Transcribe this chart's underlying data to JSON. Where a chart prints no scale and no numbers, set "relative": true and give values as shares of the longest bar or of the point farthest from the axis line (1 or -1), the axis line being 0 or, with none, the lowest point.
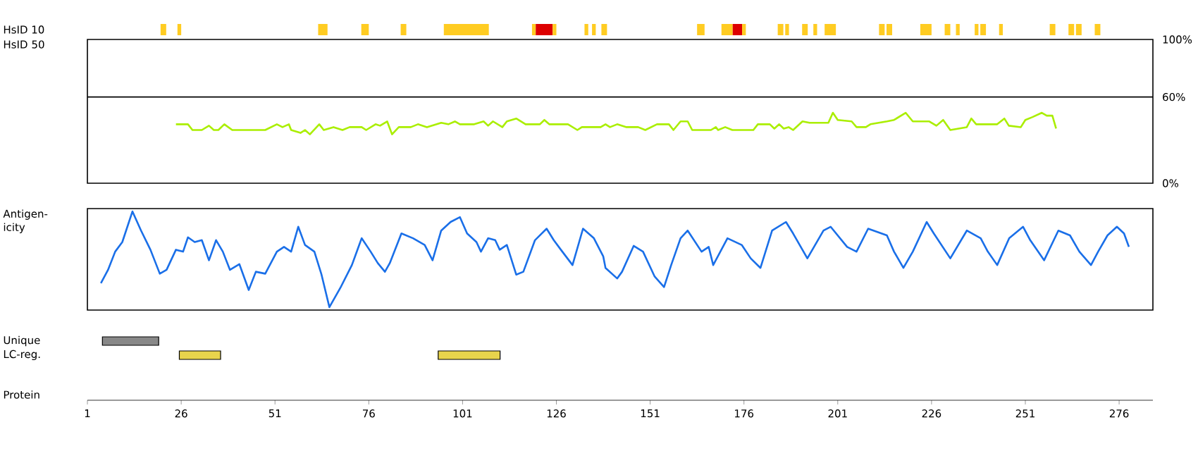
{
  "chart_data": [
    {
      "type": "bar",
      "orientation": "horizontal",
      "categories": [
        "HsID 10",
        "Unique",
        "LC-reg."
      ],
      "xlabel": "Protein",
      "xlim": [
        1,
        285
      ],
      "tick_labels": "x",
      "xticks": [
        1,
        26,
        51,
        76,
        101,
        126,
        151,
        176,
        201,
        226,
        251,
        276
      ],
      "series": [
        {
          "colors": [
            "#ffcc22",
            "#888888",
            "#e8d44c"
          ],
          "base": [
            20.5,
            5,
            25.5
          ],
          "values": [
            1.5,
            15,
            11
          ]
        },
        {
          "colors": [
            "#ffcc22",
            null,
            "#e8d44c"
          ],
          "base": [
            25,
            null,
            94.5
          ],
          "values": [
            1,
            null,
            16.5
          ]
        },
        {
          "color": "#ffcc22",
          "base": [
            62.5,
            null,
            null
          ],
          "values": [
            2.5,
            null,
            null
          ]
        },
        {
          "color": "#ffcc22",
          "base": [
            74,
            null,
            null
          ],
          "values": [
            2,
            null,
            null
          ]
        },
        {
          "color": "#ffcc22",
          "base": [
            84.5,
            null,
            null
          ],
          "values": [
            1.5,
            null,
            null
          ]
        },
        {
          "color": "#ffcc22",
          "base": [
            96,
            null,
            null
          ],
          "values": [
            12,
            null,
            null
          ]
        },
        {
          "color": "#ffcc22",
          "base": [
            119.5,
            null,
            null
          ],
          "values": [
            1,
            null,
            null
          ]
        },
        {
          "color": "#dd0000",
          "base": [
            120.5,
            null,
            null
          ],
          "values": [
            4.5,
            null,
            null
          ]
        },
        {
          "color": "#ffcc22",
          "base": [
            125,
            null,
            null
          ],
          "values": [
            1,
            null,
            null
          ]
        },
        {
          "color": "#ffcc22",
          "base": [
            133.5,
            null,
            null
          ],
          "values": [
            1,
            null,
            null
          ]
        },
        {
          "color": "#ffcc22",
          "base": [
            135.5,
            null,
            null
          ],
          "values": [
            1,
            null,
            null
          ]
        },
        {
          "color": "#ffcc22",
          "base": [
            138,
            null,
            null
          ],
          "values": [
            1.5,
            null,
            null
          ]
        },
        {
          "color": "#ffcc22",
          "base": [
            163.5,
            null,
            null
          ],
          "values": [
            2,
            null,
            null
          ]
        },
        {
          "color": "#ffcc22",
          "base": [
            170,
            null,
            null
          ],
          "values": [
            3,
            null,
            null
          ]
        },
        {
          "color": "#dd0000",
          "base": [
            173,
            null,
            null
          ],
          "values": [
            2.5,
            null,
            null
          ]
        },
        {
          "color": "#ffcc22",
          "base": [
            175.5,
            null,
            null
          ],
          "values": [
            1,
            null,
            null
          ]
        },
        {
          "color": "#ffcc22",
          "base": [
            185,
            null,
            null
          ],
          "values": [
            1.5,
            null,
            null
          ]
        },
        {
          "color": "#ffcc22",
          "base": [
            187,
            null,
            null
          ],
          "values": [
            1,
            null,
            null
          ]
        },
        {
          "color": "#ffcc22",
          "base": [
            191.5,
            null,
            null
          ],
          "values": [
            1.5,
            null,
            null
          ]
        },
        {
          "color": "#ffcc22",
          "base": [
            194.5,
            null,
            null
          ],
          "values": [
            1,
            null,
            null
          ]
        },
        {
          "color": "#ffcc22",
          "base": [
            197.5,
            null,
            null
          ],
          "values": [
            3,
            null,
            null
          ]
        },
        {
          "color": "#ffcc22",
          "base": [
            212,
            null,
            null
          ],
          "values": [
            1.5,
            null,
            null
          ]
        },
        {
          "color": "#ffcc22",
          "base": [
            214,
            null,
            null
          ],
          "values": [
            1.5,
            null,
            null
          ]
        },
        {
          "color": "#ffcc22",
          "base": [
            223,
            null,
            null
          ],
          "values": [
            3,
            null,
            null
          ]
        },
        {
          "color": "#ffcc22",
          "base": [
            229.5,
            null,
            null
          ],
          "values": [
            1.5,
            null,
            null
          ]
        },
        {
          "color": "#ffcc22",
          "base": [
            232.5,
            null,
            null
          ],
          "values": [
            1,
            null,
            null
          ]
        },
        {
          "color": "#ffcc22",
          "base": [
            237.5,
            null,
            null
          ],
          "values": [
            1,
            null,
            null
          ]
        },
        {
          "color": "#ffcc22",
          "base": [
            239,
            null,
            null
          ],
          "values": [
            1.5,
            null,
            null
          ]
        },
        {
          "color": "#ffcc22",
          "base": [
            244,
            null,
            null
          ],
          "values": [
            1,
            null,
            null
          ]
        },
        {
          "color": "#ffcc22",
          "base": [
            257.5,
            null,
            null
          ],
          "values": [
            1.5,
            null,
            null
          ]
        },
        {
          "color": "#ffcc22",
          "base": [
            262.5,
            null,
            null
          ],
          "values": [
            1.5,
            null,
            null
          ]
        },
        {
          "color": "#ffcc22",
          "base": [
            264.5,
            null,
            null
          ],
          "values": [
            1.5,
            null,
            null
          ]
        },
        {
          "color": "#ffcc22",
          "base": [
            269.5,
            null,
            null
          ],
          "values": [
            1.5,
            null,
            null
          ]
        }
      ]
    },
    {
      "type": "line",
      "ylabel": "HsID 50",
      "xlim": [
        1,
        285
      ],
      "ylim": [
        0,
        100
      ],
      "tick_labels": "y",
      "yticks": [
        {
          "value": 0,
          "label": "0%"
        },
        {
          "value": 60,
          "label": "60%"
        },
        {
          "value": 100,
          "label": "100%"
        }
      ],
      "ref_lines": [
        {
          "axis": "y",
          "value": 60,
          "color": "#000000"
        }
      ],
      "series": [
        {
          "color": "#aaee00",
          "x": [
            24.6,
            27.8,
            29.0,
            31.5,
            33.4,
            34.7,
            35.9,
            37.5,
            39.6,
            48.4,
            51.5,
            53.0,
            54.7,
            55.3,
            57.8,
            59.0,
            60.3,
            62.8,
            64.0,
            66.6,
            69.0,
            70.9,
            74.1,
            75.3,
            77.8,
            79.0,
            80.9,
            82.2,
            84.0,
            87.2,
            89.1,
            91.5,
            95.3,
            97.2,
            99.0,
            100.3,
            104.1,
            106.6,
            107.8,
            109.1,
            111.6,
            112.8,
            115.3,
            117.8,
            121.6,
            122.8,
            124.1,
            129.1,
            131.6,
            132.8,
            137.8,
            139.1,
            140.3,
            142.2,
            144.7,
            147.8,
            149.7,
            152.8,
            156.0,
            157.2,
            159.1,
            161.0,
            162.2,
            167.2,
            168.5,
            169.1,
            171.0,
            172.9,
            178.5,
            179.7,
            182.9,
            184.1,
            185.4,
            186.6,
            187.9,
            189.1,
            191.6,
            193.5,
            198.5,
            199.7,
            201.0,
            204.7,
            206.0,
            208.5,
            209.7,
            214.1,
            216.0,
            219.1,
            221.0,
            225.4,
            227.3,
            229.1,
            231.0,
            235.4,
            236.6,
            237.9,
            243.5,
            245.4,
            246.6,
            249.8,
            251.0,
            252.9,
            255.4,
            256.7,
            258.2,
            259.2
          ],
          "values": [
            41,
            41,
            37,
            37,
            40,
            37,
            37,
            41,
            37,
            37,
            41,
            39,
            41,
            37,
            35,
            37,
            34,
            41,
            37,
            39,
            37,
            39,
            39,
            37,
            41,
            40,
            43,
            34,
            39,
            39,
            41,
            39,
            42,
            41,
            43,
            41,
            41,
            43,
            40,
            43,
            39,
            43,
            45,
            41,
            41,
            44,
            41,
            41,
            37,
            39,
            39,
            41,
            39,
            41,
            39,
            39,
            37,
            41,
            41,
            37,
            43,
            43,
            37,
            37,
            39,
            37,
            39,
            37,
            37,
            41,
            41,
            38,
            41,
            38,
            39,
            37,
            43,
            42,
            42,
            49,
            44,
            43,
            39,
            39,
            41,
            43,
            44,
            49,
            43,
            43,
            40,
            44,
            37,
            39,
            45,
            41,
            41,
            45,
            40,
            39,
            44,
            46,
            49,
            47,
            47,
            38
          ]
        }
      ]
    },
    {
      "type": "line",
      "ylabel": "Antigen-icity",
      "xlim": [
        1,
        285
      ],
      "relative": true,
      "tick_labels": false,
      "series": [
        {
          "color": "#1a6fe8",
          "x": [
            4.6,
            6.5,
            8.4,
            10.3,
            13.0,
            15.3,
            17.8,
            20.3,
            22.1,
            24.6,
            26.5,
            27.8,
            29.6,
            31.5,
            33.4,
            35.3,
            37.1,
            39.0,
            41.5,
            44.0,
            45.9,
            48.4,
            51.5,
            53.4,
            55.3,
            57.2,
            59.0,
            61.5,
            63.4,
            65.5,
            68.4,
            71.5,
            74.1,
            76.5,
            78.4,
            80.3,
            81.6,
            84.7,
            87.8,
            90.9,
            93.0,
            95.3,
            97.8,
            100.3,
            102.2,
            104.7,
            105.9,
            107.8,
            109.7,
            110.9,
            112.8,
            115.3,
            117.2,
            120.3,
            123.4,
            125.3,
            127.2,
            130.3,
            133.1,
            136.0,
            138.5,
            139.1,
            142.2,
            143.5,
            146.6,
            149.1,
            152.2,
            154.7,
            156.6,
            159.1,
            161.0,
            164.7,
            166.6,
            167.8,
            171.6,
            175.4,
            177.8,
            180.4,
            183.5,
            187.2,
            189.1,
            192.9,
            197.2,
            199.1,
            203.5,
            206.0,
            209.1,
            214.1,
            216.0,
            218.5,
            221.0,
            224.7,
            226.6,
            231.0,
            235.4,
            239.1,
            241.0,
            243.5,
            246.7,
            250.4,
            252.3,
            256.0,
            259.8,
            262.9,
            265.4,
            268.5,
            270.4,
            272.9,
            275.4,
            277.3,
            278.6
          ],
          "values": [
            0.25,
            0.39,
            0.58,
            0.68,
            1.0,
            0.8,
            0.6,
            0.35,
            0.39,
            0.6,
            0.58,
            0.73,
            0.68,
            0.7,
            0.49,
            0.7,
            0.58,
            0.39,
            0.45,
            0.18,
            0.37,
            0.35,
            0.58,
            0.63,
            0.58,
            0.84,
            0.65,
            0.58,
            0.34,
            0.0,
            0.2,
            0.44,
            0.72,
            0.58,
            0.46,
            0.37,
            0.46,
            0.77,
            0.72,
            0.65,
            0.49,
            0.8,
            0.89,
            0.94,
            0.77,
            0.68,
            0.58,
            0.72,
            0.7,
            0.6,
            0.65,
            0.34,
            0.37,
            0.7,
            0.82,
            0.7,
            0.6,
            0.44,
            0.82,
            0.72,
            0.53,
            0.41,
            0.3,
            0.37,
            0.64,
            0.58,
            0.32,
            0.21,
            0.44,
            0.72,
            0.8,
            0.58,
            0.63,
            0.44,
            0.72,
            0.65,
            0.51,
            0.41,
            0.8,
            0.89,
            0.77,
            0.51,
            0.8,
            0.84,
            0.63,
            0.58,
            0.82,
            0.75,
            0.58,
            0.41,
            0.58,
            0.89,
            0.77,
            0.51,
            0.8,
            0.72,
            0.58,
            0.44,
            0.72,
            0.84,
            0.7,
            0.49,
            0.8,
            0.75,
            0.58,
            0.44,
            0.58,
            0.75,
            0.84,
            0.77,
            0.63
          ]
        }
      ]
    }
  ]
}
